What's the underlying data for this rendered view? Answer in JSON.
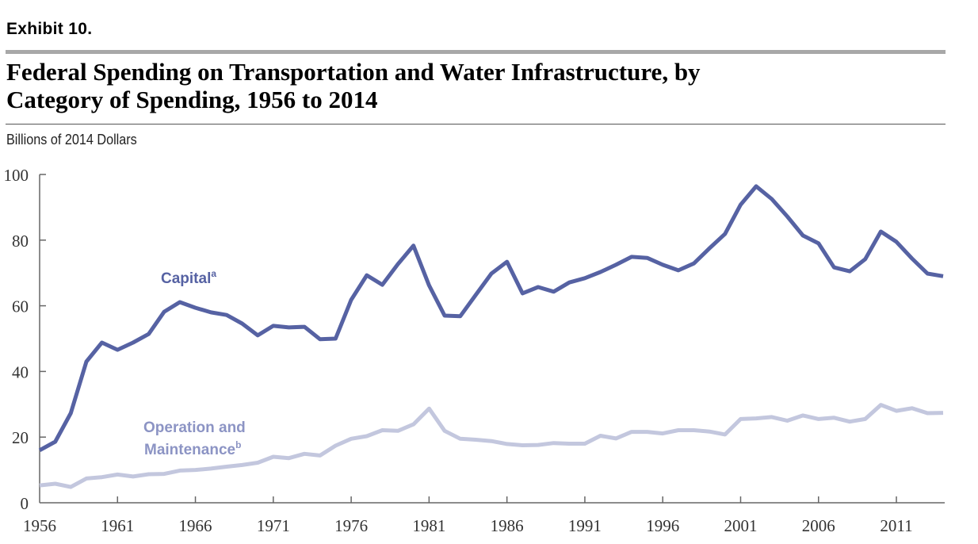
{
  "header": {
    "exhibit": "Exhibit 10.",
    "title_line1": "Federal Spending on Transportation and Water Infrastructure, by",
    "title_line2": "Category of Spending, 1956 to 2014",
    "units": "Billions of 2014 Dollars"
  },
  "colors": {
    "capital": "#5662A3",
    "operation_maintenance": "#C3C7DE",
    "axis": "#666666"
  },
  "chart_data": {
    "type": "line",
    "title": "Federal Spending on Transportation and Water Infrastructure, by Category of Spending, 1956 to 2014",
    "ylabel": "Billions of 2014 Dollars",
    "xlabel": "",
    "xlim": [
      1956,
      2014
    ],
    "ylim": [
      0,
      100
    ],
    "grid": false,
    "x_ticks": [
      1956,
      1961,
      1966,
      1971,
      1976,
      1981,
      1986,
      1991,
      1996,
      2001,
      2006,
      2011
    ],
    "y_ticks": [
      0,
      20,
      40,
      60,
      80,
      100
    ],
    "x": [
      1956,
      1957,
      1958,
      1959,
      1960,
      1961,
      1962,
      1963,
      1964,
      1965,
      1966,
      1967,
      1968,
      1969,
      1970,
      1971,
      1972,
      1973,
      1974,
      1975,
      1976,
      1977,
      1978,
      1979,
      1980,
      1981,
      1982,
      1983,
      1984,
      1985,
      1986,
      1987,
      1988,
      1989,
      1990,
      1991,
      1992,
      1993,
      1994,
      1995,
      1996,
      1997,
      1998,
      1999,
      2000,
      2001,
      2002,
      2003,
      2004,
      2005,
      2006,
      2007,
      2008,
      2009,
      2010,
      2011,
      2012,
      2013,
      2014
    ],
    "series": [
      {
        "name": "Capital",
        "label": "Capital",
        "footnote": "a",
        "values": [
          16,
          18.6,
          27.3,
          43,
          48.8,
          46.6,
          48.8,
          51.4,
          58.2,
          61.1,
          59.4,
          58,
          57.2,
          54.6,
          51,
          53.9,
          53.4,
          53.6,
          49.8,
          50,
          61.8,
          69.3,
          66.4,
          72.7,
          78.3,
          66.2,
          57,
          56.8,
          63.3,
          69.8,
          73.4,
          63.8,
          65.7,
          64.3,
          67.1,
          68.4,
          70.3,
          72.5,
          74.9,
          74.6,
          72.5,
          70.8,
          72.9,
          77.5,
          81.9,
          90.8,
          96.4,
          92.5,
          87.2,
          81.4,
          79,
          71.7,
          70.5,
          74.2,
          82.6,
          79.5,
          74.4,
          69.8,
          69
        ]
      },
      {
        "name": "Operation and Maintenance",
        "label_line1": "Operation and",
        "label_line2": "Maintenance",
        "footnote": "b",
        "values": [
          5.3,
          5.8,
          4.8,
          7.4,
          7.8,
          8.6,
          8,
          8.7,
          8.8,
          9.8,
          10,
          10.4,
          11,
          11.5,
          12.2,
          14,
          13.6,
          14.9,
          14.4,
          17.4,
          19.5,
          20.3,
          22.1,
          21.9,
          23.9,
          28.7,
          21.9,
          19.5,
          19.2,
          18.8,
          17.9,
          17.5,
          17.6,
          18.2,
          18,
          18,
          20.4,
          19.6,
          21.6,
          21.6,
          21.1,
          22.1,
          22.1,
          21.7,
          20.8,
          25.5,
          25.7,
          26.1,
          25,
          26.6,
          25.5,
          25.9,
          24.7,
          25.5,
          29.8,
          28,
          28.8,
          27.3,
          27.4
        ]
      }
    ]
  }
}
